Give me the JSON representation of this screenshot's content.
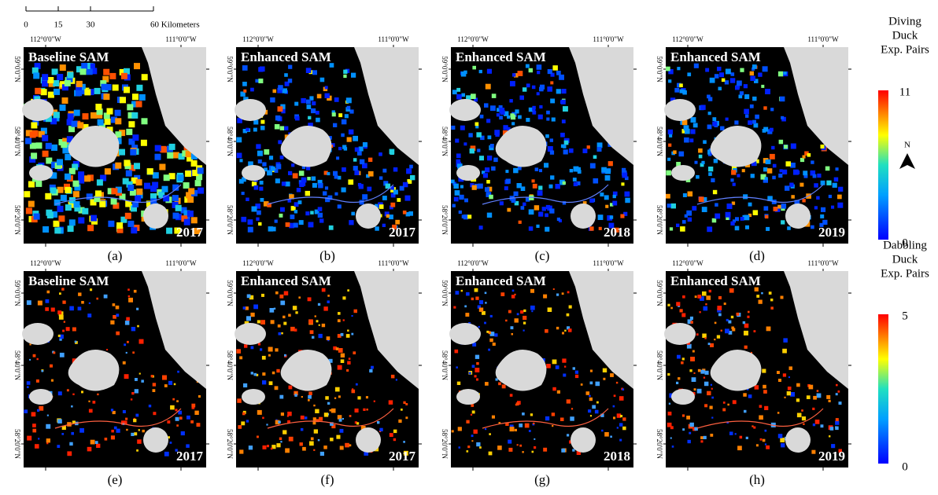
{
  "scale_bar": {
    "labels": [
      "0",
      "15",
      "30",
      "60 Kilometers"
    ]
  },
  "coordinates": {
    "lon_labels": [
      "112°0'0\"W",
      "111°0'0\"W"
    ],
    "lat_labels": [
      "59°0'0\"N",
      "58°40'0\"N",
      "58°20'0\"N"
    ]
  },
  "panels": [
    {
      "title": "Baseline SAM",
      "year": "2017",
      "caption": "(a)"
    },
    {
      "title": "Enhanced SAM",
      "year": "2017",
      "caption": "(b)"
    },
    {
      "title": "Enhanced SAM",
      "year": "2018",
      "caption": "(c)"
    },
    {
      "title": "Enhanced SAM",
      "year": "2019",
      "caption": "(d)"
    },
    {
      "title": "Baseline SAM",
      "year": "2017",
      "caption": "(e)"
    },
    {
      "title": "Enhanced SAM",
      "year": "2017",
      "caption": "(f)"
    },
    {
      "title": "Enhanced SAM",
      "year": "2018",
      "caption": "(g)"
    },
    {
      "title": "Enhanced SAM",
      "year": "2019",
      "caption": "(h)"
    }
  ],
  "legends": [
    {
      "title_lines": [
        "Diving",
        "Duck",
        "Exp. Pairs"
      ],
      "max": "11",
      "min": "0"
    },
    {
      "title_lines": [
        "Dabbling",
        "Duck",
        "Exp. Pairs"
      ],
      "max": "5",
      "min": "0"
    }
  ],
  "north_arrow": "N"
}
